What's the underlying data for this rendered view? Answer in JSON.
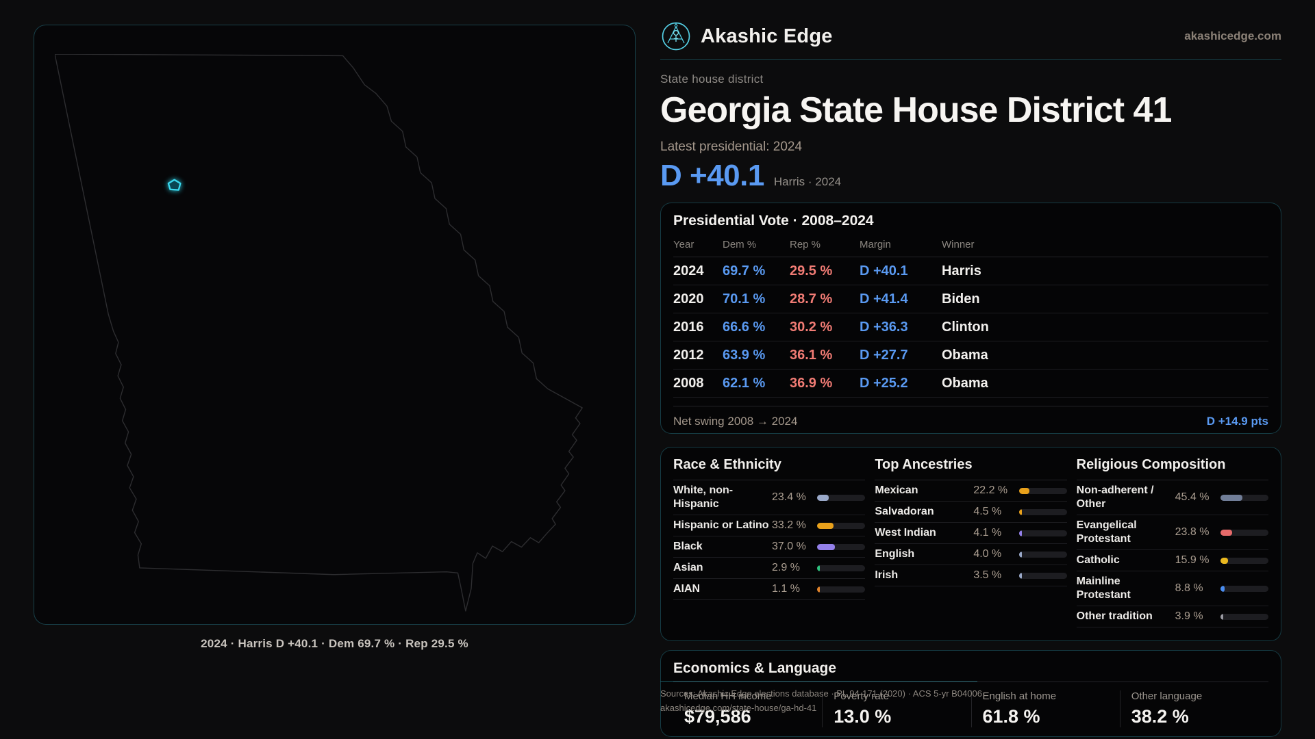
{
  "brand": {
    "name": "Akashic Edge",
    "domain": "akashicedge.com"
  },
  "page": {
    "eyebrow": "State house district",
    "title": "Georgia State House District 41",
    "latest_label": "Latest presidential: 2024",
    "headline_margin": "D +40.1",
    "headline_sub": "Harris · 2024"
  },
  "map": {
    "caption": "2024 · Harris D +40.1 · Dem 69.7 % · Rep 29.5 %"
  },
  "vote_table": {
    "title": "Presidential Vote · 2008–2024",
    "columns": [
      "Year",
      "Dem %",
      "Rep %",
      "Margin",
      "Winner"
    ],
    "rows": [
      {
        "year": "2024",
        "dem": "69.7 %",
        "rep": "29.5 %",
        "margin": "D +40.1",
        "winner": "Harris"
      },
      {
        "year": "2020",
        "dem": "70.1 %",
        "rep": "28.7 %",
        "margin": "D +41.4",
        "winner": "Biden"
      },
      {
        "year": "2016",
        "dem": "66.6 %",
        "rep": "30.2 %",
        "margin": "D +36.3",
        "winner": "Clinton"
      },
      {
        "year": "2012",
        "dem": "63.9 %",
        "rep": "36.1 %",
        "margin": "D +27.7",
        "winner": "Obama"
      },
      {
        "year": "2008",
        "dem": "62.1 %",
        "rep": "36.9 %",
        "margin": "D +25.2",
        "winner": "Obama"
      }
    ],
    "footer_label": "Net swing 2008 → 2024",
    "footer_value": "D +14.9 pts"
  },
  "demographics": {
    "race": {
      "title": "Race & Ethnicity",
      "rows": [
        {
          "label": "White, non-Hispanic",
          "value": "23.4 %",
          "pct": 23.4,
          "color": "#9aa9c9"
        },
        {
          "label": "Hispanic or Latino",
          "value": "33.2 %",
          "pct": 33.2,
          "color": "#e9a11b"
        },
        {
          "label": "Black",
          "value": "37.0 %",
          "pct": 37.0,
          "color": "#9480ea"
        },
        {
          "label": "Asian",
          "value": "2.9 %",
          "pct": 2.9,
          "color": "#2ec27e"
        },
        {
          "label": "AIAN",
          "value": "1.1 %",
          "pct": 1.1,
          "color": "#e0832a"
        }
      ]
    },
    "ancestry": {
      "title": "Top Ancestries",
      "rows": [
        {
          "label": "Mexican",
          "value": "22.2 %",
          "pct": 22.2,
          "color": "#e9a11b"
        },
        {
          "label": "Salvadoran",
          "value": "4.5 %",
          "pct": 4.5,
          "color": "#e9a11b"
        },
        {
          "label": "West Indian",
          "value": "4.1 %",
          "pct": 4.1,
          "color": "#9480ea"
        },
        {
          "label": "English",
          "value": "4.0 %",
          "pct": 4.0,
          "color": "#9aa9c9"
        },
        {
          "label": "Irish",
          "value": "3.5 %",
          "pct": 3.5,
          "color": "#9aa9c9"
        }
      ]
    },
    "religion": {
      "title": "Religious Composition",
      "rows": [
        {
          "label": "Non-adherent / Other",
          "value": "45.4 %",
          "pct": 45.4,
          "color": "#717e98"
        },
        {
          "label": "Evangelical Protestant",
          "value": "23.8 %",
          "pct": 23.8,
          "color": "#e66a6a"
        },
        {
          "label": "Catholic",
          "value": "15.9 %",
          "pct": 15.9,
          "color": "#eab81f"
        },
        {
          "label": "Mainline Protestant",
          "value": "8.8 %",
          "pct": 8.8,
          "color": "#4a8df0"
        },
        {
          "label": "Other tradition",
          "value": "3.9 %",
          "pct": 3.9,
          "color": "#9b9ba3"
        }
      ]
    }
  },
  "economics": {
    "title": "Economics & Language",
    "stats": [
      {
        "label": "Median HH income",
        "value": "$79,586"
      },
      {
        "label": "Poverty rate",
        "value": "13.0 %"
      },
      {
        "label": "English at home",
        "value": "61.8 %"
      },
      {
        "label": "Other language",
        "value": "38.2 %"
      }
    ]
  },
  "sources": {
    "line1": "Sources: Akashic Edge elections database · PL 94-171 (2020) · ACS 5-yr B04006",
    "line2": "akashicedge.com/state-house/ga-hd-41"
  },
  "colors": {
    "dem": "#5a9af2",
    "rep": "#f27c75",
    "accent": "#3fdef2"
  }
}
